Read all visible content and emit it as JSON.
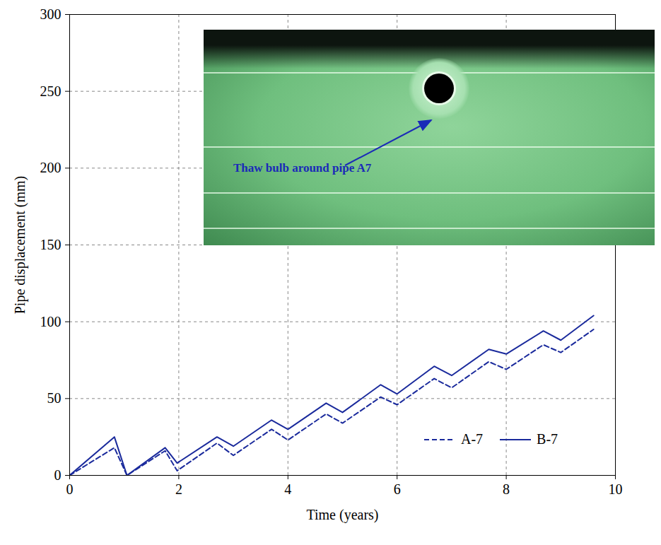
{
  "chart_data": {
    "type": "line",
    "xlabel": "Time (years)",
    "ylabel": "Pipe displacement (mm)",
    "x": [
      0,
      0.82,
      1.05,
      1.75,
      1.97,
      2.7,
      3.0,
      3.7,
      4.0,
      4.7,
      5.0,
      5.7,
      6.0,
      6.68,
      7.0,
      7.68,
      8.0,
      8.68,
      9.0,
      9.6
    ],
    "series": [
      {
        "name": "A-7",
        "color": "#1a2a9c",
        "line_style": "dashed",
        "values": [
          0,
          18,
          0,
          16,
          3,
          21,
          13,
          30,
          23,
          40,
          34,
          51,
          46,
          63,
          57,
          74,
          69,
          85,
          80,
          95
        ]
      },
      {
        "name": "B-7",
        "color": "#1a2a9c",
        "line_style": "solid",
        "values": [
          0,
          25,
          0,
          18,
          8,
          25,
          19,
          36,
          30,
          47,
          41,
          59,
          53,
          71,
          65,
          82,
          79,
          94,
          88,
          104
        ]
      }
    ],
    "xlim": [
      0,
      10
    ],
    "xticks": [
      0,
      2,
      4,
      6,
      8,
      10
    ],
    "ylim": [
      0,
      300
    ],
    "yticks": [
      0,
      50,
      100,
      150,
      200,
      250,
      300
    ],
    "grid": true,
    "legend": "bottom-right",
    "annotations": [
      {
        "text": "Thaw bulb around pipe A7"
      }
    ]
  }
}
